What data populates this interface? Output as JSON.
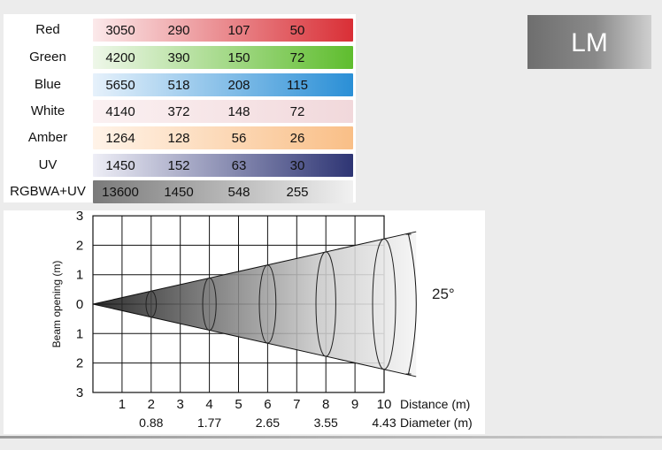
{
  "table": {
    "rows": [
      {
        "label": "Red",
        "values": [
          "3050",
          "290",
          "107",
          "50"
        ],
        "gradient": [
          "#fbe9ea",
          "#d92f36"
        ]
      },
      {
        "label": "Green",
        "values": [
          "4200",
          "390",
          "150",
          "72"
        ],
        "gradient": [
          "#eef7e9",
          "#5fbd2e"
        ]
      },
      {
        "label": "Blue",
        "values": [
          "5650",
          "518",
          "208",
          "115"
        ],
        "gradient": [
          "#e6f1fb",
          "#2a8fd6"
        ]
      },
      {
        "label": "White",
        "values": [
          "4140",
          "372",
          "148",
          "72"
        ],
        "gradient": [
          "#fbf1f2",
          "#f1d8db"
        ]
      },
      {
        "label": "Amber",
        "values": [
          "1264",
          "128",
          "56",
          "26"
        ],
        "gradient": [
          "#fff3e8",
          "#f9bf87"
        ]
      },
      {
        "label": "UV",
        "values": [
          "1450",
          "152",
          "63",
          "30"
        ],
        "gradient": [
          "#eeeef6",
          "#2e3574"
        ]
      },
      {
        "label": "RGBWA+UV",
        "values": [
          "13600",
          "1450",
          "548",
          "255"
        ],
        "gradient": [
          "#7a7a7a",
          "#f1f1f1"
        ]
      }
    ]
  },
  "badge": {
    "text": "LM"
  },
  "beam": {
    "angle_label": "25°",
    "y_axis_label": "Beam opening (m)",
    "y_ticks": [
      "3",
      "2",
      "1",
      "0",
      "1",
      "2",
      "3"
    ],
    "distance_ticks": [
      "1",
      "2",
      "3",
      "4",
      "5",
      "6",
      "7",
      "8",
      "9",
      "10"
    ],
    "distance_label": "Distance (m)",
    "diameter_label": "Diameter (m)",
    "diameters": [
      {
        "distance": 2,
        "value": "0.88"
      },
      {
        "distance": 4,
        "value": "1.77"
      },
      {
        "distance": 6,
        "value": "2.65"
      },
      {
        "distance": 8,
        "value": "3.55"
      },
      {
        "distance": 10,
        "value": "4.43"
      }
    ]
  }
}
